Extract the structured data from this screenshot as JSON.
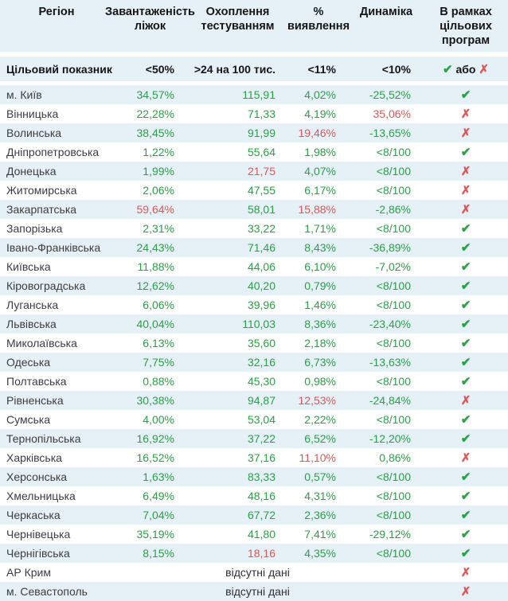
{
  "colors": {
    "green": "#27a244",
    "red": "#e05555",
    "stripe": "#e5f1f7"
  },
  "glyphs": {
    "check": "✔",
    "cross": "✗"
  },
  "chart_data": {
    "type": "table",
    "columns": [
      "Регіон",
      "Завантаженість ліжок",
      "Охоплення тестуванням",
      "% виявлення",
      "Динаміка",
      "В рамках цільових програм"
    ],
    "target_row": {
      "label": "Цільовий показник",
      "beds": "<50%",
      "testing": ">24 на 100 тис.",
      "detection": "<11%",
      "dynamics": "<10%",
      "check": "✔",
      "or_text": "або",
      "cross": "✗"
    },
    "no_data_text": "відсутні дані",
    "rows": [
      {
        "region": "м. Київ",
        "beds": "34,57%",
        "testing": "115,91",
        "detection": "4,02%",
        "dynamics": "-25,52%",
        "red": [],
        "program": "check"
      },
      {
        "region": "Вінницька",
        "beds": "22,28%",
        "testing": "71,33",
        "detection": "4,19%",
        "dynamics": "35,06%",
        "red": [
          "dynamics"
        ],
        "program": "cross"
      },
      {
        "region": "Волинська",
        "beds": "38,45%",
        "testing": "91,99",
        "detection": "19,46%",
        "dynamics": "-13,65%",
        "red": [
          "detection"
        ],
        "program": "cross"
      },
      {
        "region": "Дніпропетровська",
        "beds": "1,22%",
        "testing": "55,64",
        "detection": "1,98%",
        "dynamics": "<8/100",
        "red": [],
        "program": "check"
      },
      {
        "region": "Донецька",
        "beds": "1,99%",
        "testing": "21,75",
        "detection": "4,07%",
        "dynamics": "<8/100",
        "red": [
          "testing"
        ],
        "program": "cross"
      },
      {
        "region": "Житомирська",
        "beds": "2,06%",
        "testing": "47,55",
        "detection": "6,17%",
        "dynamics": "<8/100",
        "red": [],
        "program": "cross"
      },
      {
        "region": "Закарпатська",
        "beds": "59,64%",
        "testing": "58,01",
        "detection": "15,88%",
        "dynamics": "-2,86%",
        "red": [
          "beds",
          "detection"
        ],
        "program": "cross"
      },
      {
        "region": "Запорізька",
        "beds": "2,31%",
        "testing": "33,22",
        "detection": "1,71%",
        "dynamics": "<8/100",
        "red": [],
        "program": "check"
      },
      {
        "region": "Івано-Франківська",
        "beds": "24,43%",
        "testing": "71,46",
        "detection": "8,43%",
        "dynamics": "-36,89%",
        "red": [],
        "program": "check"
      },
      {
        "region": "Київська",
        "beds": "11,88%",
        "testing": "44,06",
        "detection": "6,10%",
        "dynamics": "-7,02%",
        "red": [],
        "program": "check"
      },
      {
        "region": "Кіровоградська",
        "beds": "12,62%",
        "testing": "40,20",
        "detection": "0,79%",
        "dynamics": "<8/100",
        "red": [],
        "program": "check"
      },
      {
        "region": "Луганська",
        "beds": "6,06%",
        "testing": "39,96",
        "detection": "1,46%",
        "dynamics": "<8/100",
        "red": [],
        "program": "check"
      },
      {
        "region": "Львівська",
        "beds": "40,04%",
        "testing": "110,03",
        "detection": "8,36%",
        "dynamics": "-23,40%",
        "red": [],
        "program": "check"
      },
      {
        "region": "Миколаївська",
        "beds": "6,13%",
        "testing": "35,60",
        "detection": "2,18%",
        "dynamics": "<8/100",
        "red": [],
        "program": "check"
      },
      {
        "region": "Одеська",
        "beds": "7,75%",
        "testing": "32,16",
        "detection": "6,73%",
        "dynamics": "-13,63%",
        "red": [],
        "program": "check"
      },
      {
        "region": "Полтавська",
        "beds": "0,88%",
        "testing": "45,30",
        "detection": "0,98%",
        "dynamics": "<8/100",
        "red": [],
        "program": "check"
      },
      {
        "region": "Рівненська",
        "beds": "30,38%",
        "testing": "94,87",
        "detection": "12,53%",
        "dynamics": "-24,84%",
        "red": [
          "detection"
        ],
        "program": "cross"
      },
      {
        "region": "Сумська",
        "beds": "4,00%",
        "testing": "53,04",
        "detection": "2,22%",
        "dynamics": "<8/100",
        "red": [],
        "program": "check"
      },
      {
        "region": "Тернопільська",
        "beds": "16,92%",
        "testing": "37,22",
        "detection": "6,52%",
        "dynamics": "-12,20%",
        "red": [],
        "program": "check"
      },
      {
        "region": "Харківська",
        "beds": "16,52%",
        "testing": "37,16",
        "detection": "11,10%",
        "dynamics": "0,86%",
        "red": [
          "detection"
        ],
        "program": "cross"
      },
      {
        "region": "Херсонська",
        "beds": "1,63%",
        "testing": "83,33",
        "detection": "0,57%",
        "dynamics": "<8/100",
        "red": [],
        "program": "check"
      },
      {
        "region": "Хмельницька",
        "beds": "6,49%",
        "testing": "48,16",
        "detection": "4,31%",
        "dynamics": "<8/100",
        "red": [],
        "program": "check"
      },
      {
        "region": "Черкаська",
        "beds": "7,04%",
        "testing": "67,72",
        "detection": "2,36%",
        "dynamics": "<8/100",
        "red": [],
        "program": "check"
      },
      {
        "region": "Чернівецька",
        "beds": "35,19%",
        "testing": "41,80",
        "detection": "7,41%",
        "dynamics": "-29,12%",
        "red": [],
        "program": "check"
      },
      {
        "region": "Чернігівська",
        "beds": "8,15%",
        "testing": "18,16",
        "detection": "4,35%",
        "dynamics": "<8/100",
        "red": [
          "testing"
        ],
        "program": "check"
      },
      {
        "region": "АР Крим",
        "no_data": true,
        "program": "cross"
      },
      {
        "region": "м. Севастополь",
        "no_data": true,
        "program": "cross"
      }
    ]
  }
}
